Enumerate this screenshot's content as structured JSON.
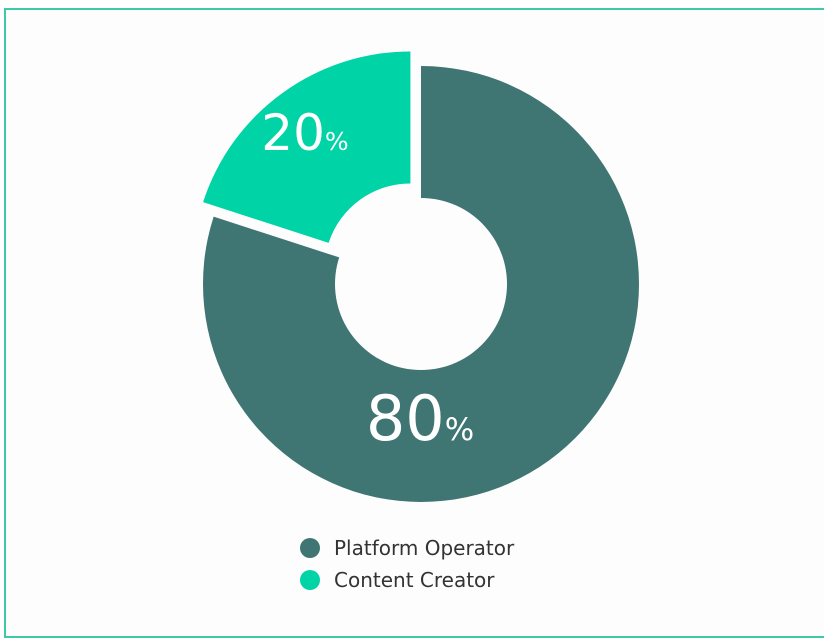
{
  "chart_data": {
    "type": "pie",
    "variant": "donut",
    "categories": [
      "Platform Operator",
      "Content Creator"
    ],
    "values": [
      80,
      20
    ],
    "value_labels": [
      "80",
      "20"
    ],
    "value_suffix": "%",
    "colors": [
      "#3f7572",
      "#00d4a6"
    ],
    "exploded": [
      false,
      true
    ],
    "legend_position": "bottom"
  }
}
